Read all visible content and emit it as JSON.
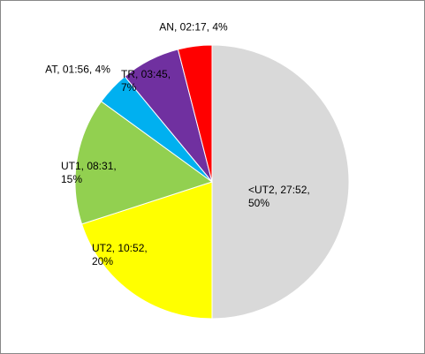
{
  "chart_data": {
    "type": "pie",
    "values": [
      50,
      20,
      15,
      4,
      7,
      4
    ],
    "value_labels": [
      "<UT2, 27:52, 50%",
      "UT2, 10:52, 20%",
      "UT1, 08:31, 15%",
      "AT, 01:56, 4%",
      "TR, 03:45, 7%",
      "AN, 02:17, 4%"
    ],
    "colors": [
      "#d9d9d9",
      "#ffff00",
      "#92d050",
      "#00b0f0",
      "#7030a0",
      "#ff0000"
    ]
  }
}
